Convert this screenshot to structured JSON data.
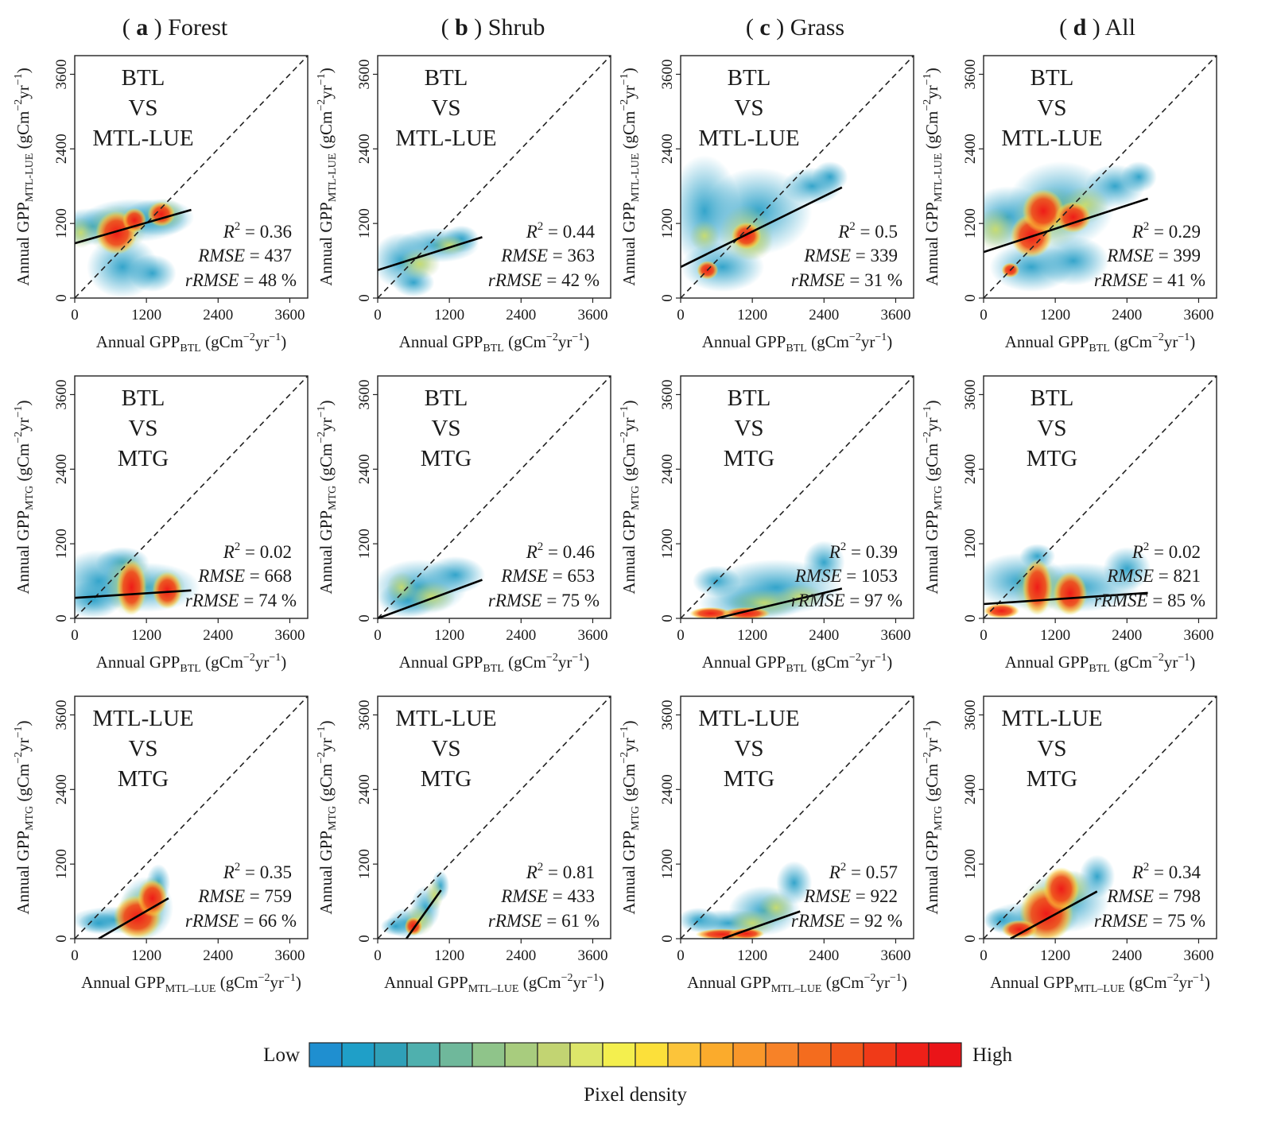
{
  "figure": {
    "columns": [
      {
        "label": "a",
        "title": "Forest"
      },
      {
        "label": "b",
        "title": "Shrub"
      },
      {
        "label": "c",
        "title": "Grass"
      },
      {
        "label": "d",
        "title": "All"
      }
    ],
    "colorbar": {
      "low_label": "Low",
      "high_label": "High",
      "title": "Pixel  density",
      "colors": [
        "#1f8fd0",
        "#1f9fc8",
        "#2fa0b8",
        "#4fb0ae",
        "#6fb89b",
        "#8fc48a",
        "#a8cc7e",
        "#c2d472",
        "#dde66a",
        "#f4ef4e",
        "#fce03a",
        "#fcc43a",
        "#fbab2c",
        "#f9972a",
        "#f78228",
        "#f46c1e",
        "#f2561a",
        "#f03a18",
        "#ee2018",
        "#ea1418"
      ]
    },
    "axis_tick_labels": [
      "0",
      "1200",
      "2400",
      "3600"
    ],
    "axis_label_parts": {
      "prefix": "Annual GPP",
      "units": "(gCm",
      "exp1": "−2",
      "mid": "yr",
      "exp2": "−1",
      "close": ")"
    },
    "stat_labels": {
      "r2": "R",
      "r2_sup": "2",
      "rmse": "RMSE",
      "rrmse": "rRMSE"
    }
  },
  "chart_data": [
    {
      "type": "scatter",
      "panel": "a-row1",
      "title_lines": [
        "BTL",
        "VS",
        "MTL-LUE"
      ],
      "x_sub": "BTL",
      "y_sub": "MTL-LUE",
      "xlim": [
        0,
        3900
      ],
      "ylim": [
        0,
        3900
      ],
      "r2": "0.36",
      "rmse": "437",
      "rrmse": "48 %",
      "fit_line": [
        [
          0,
          880
        ],
        [
          1950,
          1420
        ]
      ]
    },
    {
      "type": "scatter",
      "panel": "b-row1",
      "title_lines": [
        "BTL",
        "VS",
        "MTL-LUE"
      ],
      "x_sub": "BTL",
      "y_sub": "MTL-LUE",
      "xlim": [
        0,
        3900
      ],
      "ylim": [
        0,
        3900
      ],
      "r2": "0.44",
      "rmse": "363",
      "rrmse": "42 %",
      "fit_line": [
        [
          0,
          450
        ],
        [
          1750,
          980
        ]
      ]
    },
    {
      "type": "scatter",
      "panel": "c-row1",
      "title_lines": [
        "BTL",
        "VS",
        "MTL-LUE"
      ],
      "x_sub": "BTL",
      "y_sub": "MTL-LUE",
      "xlim": [
        0,
        3900
      ],
      "ylim": [
        0,
        3900
      ],
      "r2": "0.5",
      "rmse": "339",
      "rrmse": "31 %",
      "fit_line": [
        [
          0,
          500
        ],
        [
          2700,
          1780
        ]
      ]
    },
    {
      "type": "scatter",
      "panel": "d-row1",
      "title_lines": [
        "BTL",
        "VS",
        "MTL-LUE"
      ],
      "x_sub": "BTL",
      "y_sub": "MTL-LUE",
      "xlim": [
        0,
        3900
      ],
      "ylim": [
        0,
        3900
      ],
      "r2": "0.29",
      "rmse": "399",
      "rrmse": "41 %",
      "fit_line": [
        [
          0,
          740
        ],
        [
          2750,
          1600
        ]
      ]
    },
    {
      "type": "scatter",
      "panel": "a-row2",
      "title_lines": [
        "BTL",
        "VS",
        "MTG"
      ],
      "x_sub": "BTL",
      "y_sub": "MTG",
      "xlim": [
        0,
        3900
      ],
      "ylim": [
        0,
        3900
      ],
      "r2": "0.02",
      "rmse": "668",
      "rrmse": "74 %",
      "fit_line": [
        [
          0,
          330
        ],
        [
          1950,
          450
        ]
      ]
    },
    {
      "type": "scatter",
      "panel": "b-row2",
      "title_lines": [
        "BTL",
        "VS",
        "MTG"
      ],
      "x_sub": "BTL",
      "y_sub": "MTG",
      "xlim": [
        0,
        3900
      ],
      "ylim": [
        0,
        3900
      ],
      "r2": "0.46",
      "rmse": "653",
      "rrmse": "75 %",
      "fit_line": [
        [
          0,
          0
        ],
        [
          1750,
          620
        ]
      ]
    },
    {
      "type": "scatter",
      "panel": "c-row2",
      "title_lines": [
        "BTL",
        "VS",
        "MTG"
      ],
      "x_sub": "BTL",
      "y_sub": "MTG",
      "xlim": [
        0,
        3900
      ],
      "ylim": [
        0,
        3900
      ],
      "r2": "0.39",
      "rmse": "1053",
      "rrmse": "97 %",
      "fit_line": [
        [
          600,
          0
        ],
        [
          2700,
          480
        ]
      ]
    },
    {
      "type": "scatter",
      "panel": "d-row2",
      "title_lines": [
        "BTL",
        "VS",
        "MTG"
      ],
      "x_sub": "BTL",
      "y_sub": "MTG",
      "xlim": [
        0,
        3900
      ],
      "ylim": [
        0,
        3900
      ],
      "r2": "0.02",
      "rmse": "821",
      "rrmse": "85 %",
      "fit_line": [
        [
          0,
          230
        ],
        [
          2750,
          410
        ]
      ]
    },
    {
      "type": "scatter",
      "panel": "a-row3",
      "title_lines": [
        "MTL-LUE",
        "VS",
        "MTG"
      ],
      "x_sub": "MTL–LUE",
      "y_sub": "MTG",
      "xlim": [
        0,
        3900
      ],
      "ylim": [
        0,
        3900
      ],
      "r2": "0.35",
      "rmse": "759",
      "rrmse": "66 %",
      "fit_line": [
        [
          400,
          0
        ],
        [
          1570,
          650
        ]
      ]
    },
    {
      "type": "scatter",
      "panel": "b-row3",
      "title_lines": [
        "MTL-LUE",
        "VS",
        "MTG"
      ],
      "x_sub": "MTL–LUE",
      "y_sub": "MTG",
      "xlim": [
        0,
        3900
      ],
      "ylim": [
        0,
        3900
      ],
      "r2": "0.81",
      "rmse": "433",
      "rrmse": "61 %",
      "fit_line": [
        [
          480,
          0
        ],
        [
          1060,
          780
        ]
      ]
    },
    {
      "type": "scatter",
      "panel": "c-row3",
      "title_lines": [
        "MTL-LUE",
        "VS",
        "MTG"
      ],
      "x_sub": "MTL–LUE",
      "y_sub": "MTG",
      "xlim": [
        0,
        3900
      ],
      "ylim": [
        0,
        3900
      ],
      "r2": "0.57",
      "rmse": "922",
      "rrmse": "92 %",
      "fit_line": [
        [
          700,
          0
        ],
        [
          2000,
          440
        ]
      ]
    },
    {
      "type": "scatter",
      "panel": "d-row3",
      "title_lines": [
        "MTL-LUE",
        "VS",
        "MTG"
      ],
      "x_sub": "MTL–LUE",
      "y_sub": "MTG",
      "xlim": [
        0,
        3900
      ],
      "ylim": [
        0,
        3900
      ],
      "r2": "0.34",
      "rmse": "798",
      "rrmse": "75 %",
      "fit_line": [
        [
          450,
          0
        ],
        [
          1900,
          760
        ]
      ]
    }
  ]
}
